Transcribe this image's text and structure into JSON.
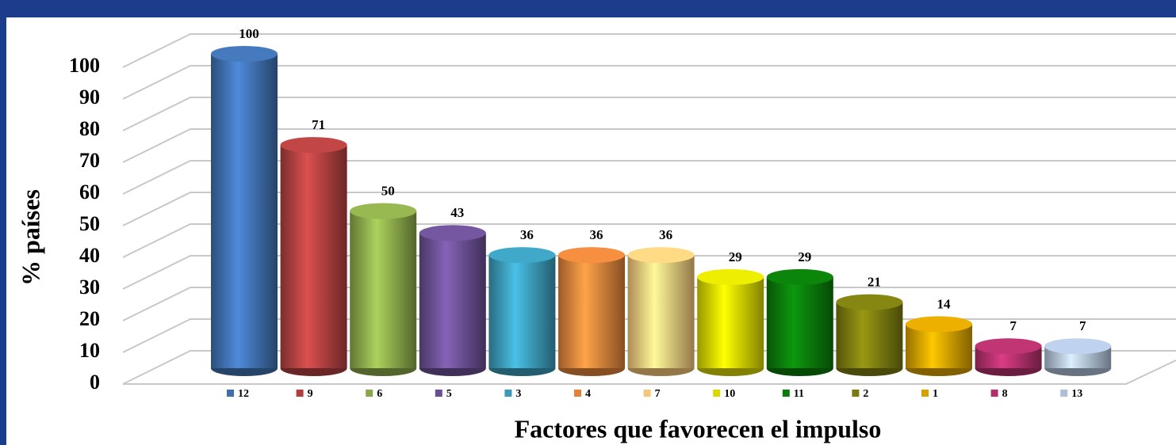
{
  "chart_data": {
    "type": "bar",
    "ylabel": "% países",
    "xlabel": "Factores que favorecen el impulso",
    "categories": [
      "12",
      "9",
      "6",
      "5",
      "3",
      "4",
      "7",
      "10",
      "11",
      "2",
      "1",
      "8",
      "13"
    ],
    "values": [
      100,
      71,
      50,
      43,
      36,
      36,
      36,
      29,
      29,
      21,
      14,
      7,
      7
    ],
    "colors": [
      "#3f6fae",
      "#b04040",
      "#8aa84a",
      "#6a4f92",
      "#3a9ab8",
      "#e0823a",
      "#f5c77a",
      "#d8d800",
      "#0a7a0a",
      "#7a7a10",
      "#d8a000",
      "#b0306a",
      "#aebfd9"
    ],
    "ylim": [
      0,
      100
    ],
    "yticks": [
      0,
      10,
      20,
      30,
      40,
      50,
      60,
      70,
      80,
      90,
      100
    ],
    "grid": true,
    "legend": "bottom"
  }
}
